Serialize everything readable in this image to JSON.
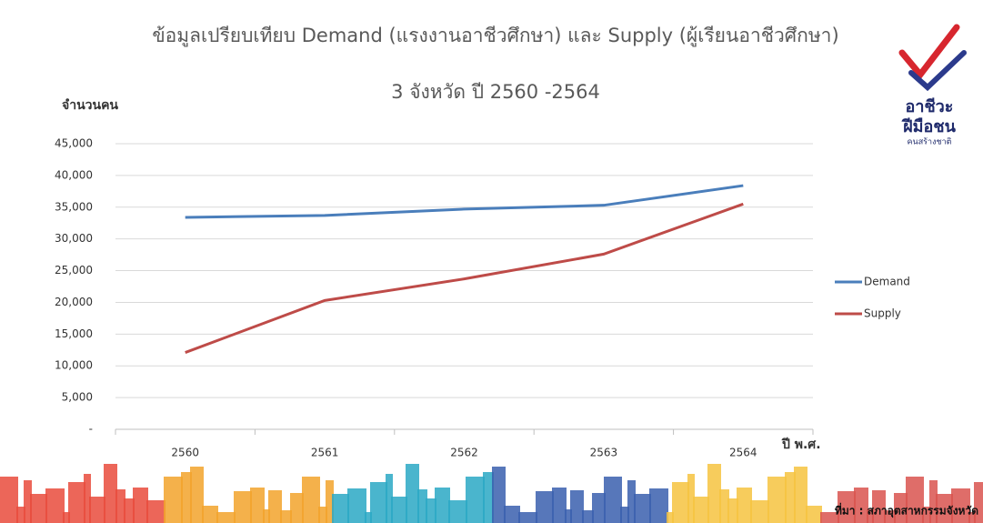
{
  "chart_data": {
    "type": "line",
    "title": "ข้อมูลเปรียบเทียบ Demand (แรงงานอาชีวศึกษา) และ  Supply (ผู้เรียนอาชีวศึกษา)",
    "subtitle": "3 จังหวัด ปี 2560 -2564",
    "y_label": "จำนวนคน",
    "x_label": "ปี พ.ศ.",
    "categories": [
      "2560",
      "2561",
      "2562",
      "2563",
      "2564"
    ],
    "series": [
      {
        "name": "Demand",
        "color": "#4a7ebb",
        "values": [
          33400,
          33700,
          34700,
          35300,
          38400
        ]
      },
      {
        "name": "Supply",
        "color": "#be4b48",
        "values": [
          12100,
          20300,
          23700,
          27600,
          35500
        ]
      }
    ],
    "ylim": [
      0,
      45000
    ],
    "yticks": [
      {
        "value": 0,
        "label": "-"
      },
      {
        "value": 5000,
        "label": "5,000"
      },
      {
        "value": 10000,
        "label": "10,000"
      },
      {
        "value": 15000,
        "label": "15,000"
      },
      {
        "value": 20000,
        "label": "20,000"
      },
      {
        "value": 25000,
        "label": "25,000"
      },
      {
        "value": 30000,
        "label": "30,000"
      },
      {
        "value": 35000,
        "label": "35,000"
      },
      {
        "value": 40000,
        "label": "40,000"
      },
      {
        "value": 45000,
        "label": "45,000"
      }
    ],
    "grid": true,
    "legend": "right",
    "source": "ที่มา : สภาอุตสาหกรรมจังหวัด"
  },
  "logo": {
    "line1": "อาชีวะ",
    "line2": "ฝีมือชน",
    "line3": "คนสร้างชาติ"
  }
}
